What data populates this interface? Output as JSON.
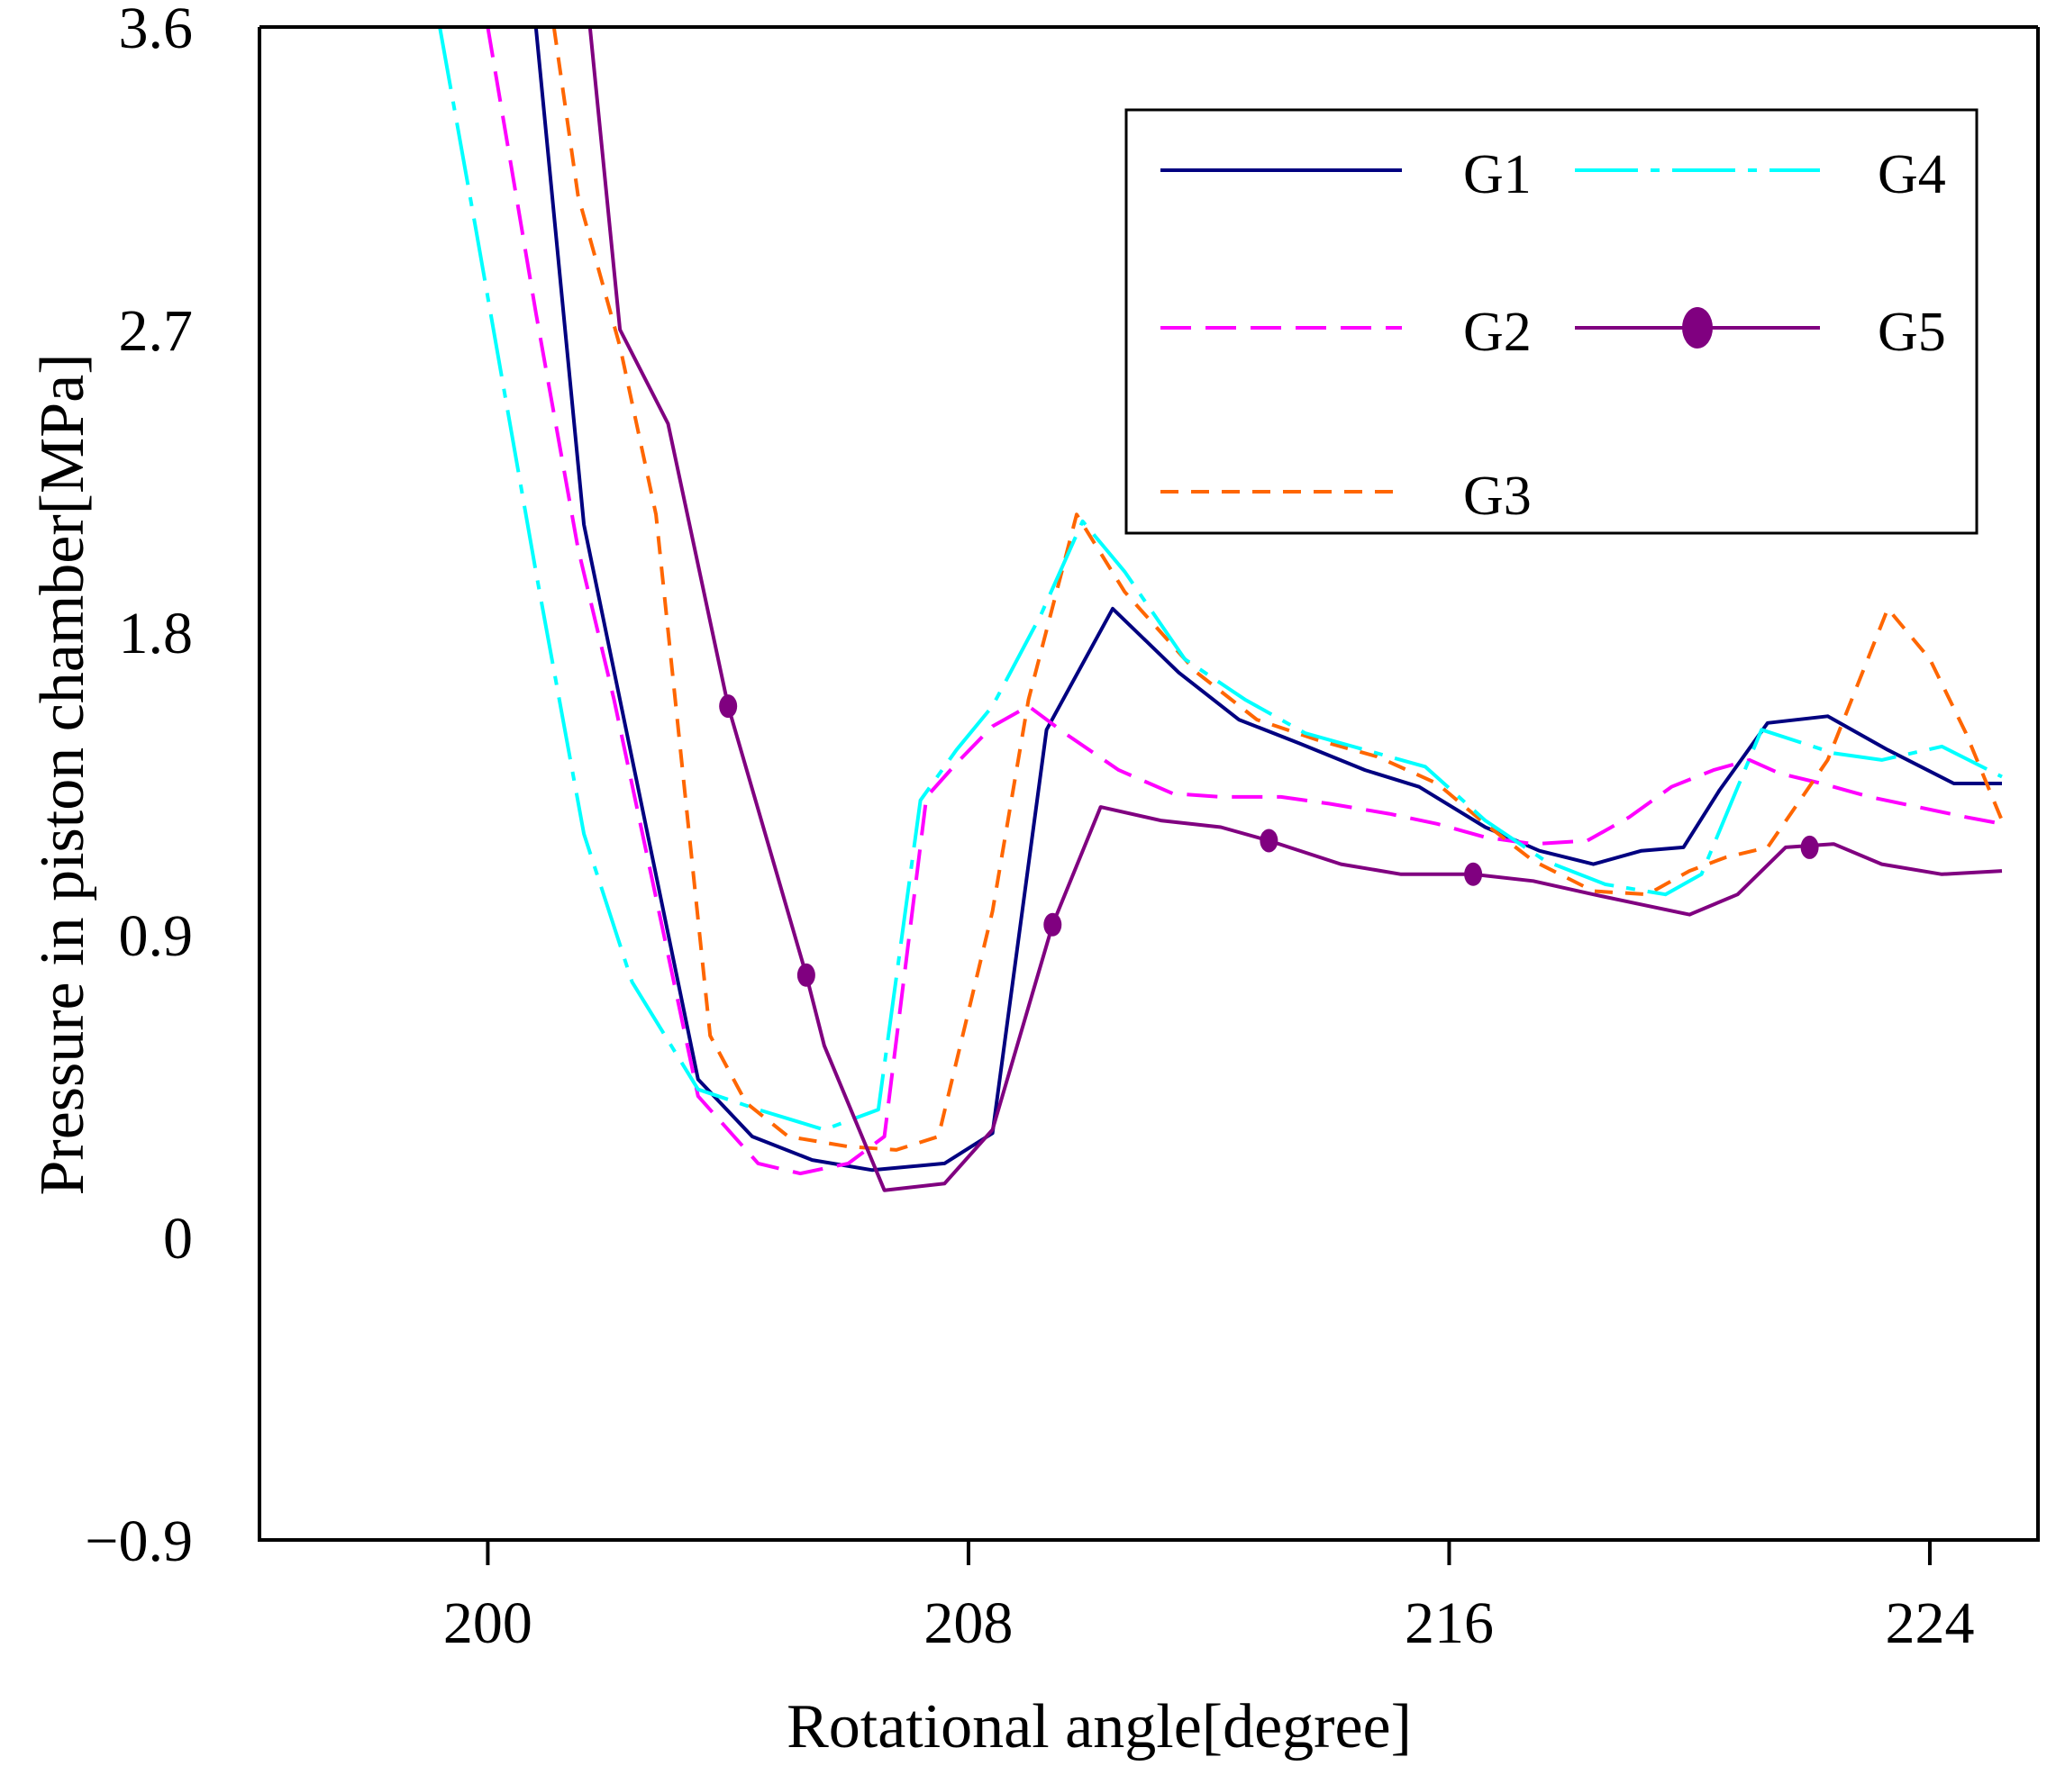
{
  "chart_data": {
    "type": "line",
    "title": "",
    "xlabel": "Rotational angle[degree]",
    "ylabel": "Pressure in piston chamber[MPa]",
    "xlim": [
      196.2,
      225.8
    ],
    "ylim": [
      -0.9,
      3.6
    ],
    "xticks": [
      200,
      208,
      216,
      224
    ],
    "xtick_labels": [
      "200",
      "208",
      "216",
      "224"
    ],
    "yticks": [
      -0.9,
      0,
      0.9,
      1.8,
      2.7,
      3.6
    ],
    "ytick_labels": [
      "−0.9",
      "0",
      "0.9",
      "1.8",
      "2.7",
      "3.6"
    ],
    "grid": false,
    "legend_position": "top-right",
    "series": [
      {
        "name": "G1",
        "color": "#000080",
        "dash": "",
        "x": [
          200.8,
          201.6,
          203.5,
          204.4,
          205.4,
          206.4,
          207.6,
          208.4,
          209.3,
          210.4,
          211.5,
          212.5,
          213.5,
          214.6,
          215.5,
          216.6,
          217.5,
          218.4,
          219.2,
          219.9,
          220.5,
          221.3,
          222.3,
          223.3,
          224.4,
          225.2
        ],
        "y": [
          3.6,
          2.12,
          0.47,
          0.3,
          0.23,
          0.2,
          0.22,
          0.31,
          1.51,
          1.87,
          1.68,
          1.54,
          1.47,
          1.39,
          1.34,
          1.22,
          1.15,
          1.11,
          1.15,
          1.16,
          1.33,
          1.53,
          1.55,
          1.45,
          1.35,
          1.35
        ]
      },
      {
        "name": "G2",
        "color": "#ff00ff",
        "dash": "34,16",
        "x": [
          200.0,
          200.8,
          201.5,
          202.1,
          203.5,
          204.5,
          205.2,
          206.0,
          206.6,
          207.3,
          207.8,
          208.4,
          209.0,
          209.6,
          210.5,
          211.4,
          212.2,
          213.2,
          214.0,
          215.0,
          215.8,
          216.6,
          217.4,
          218.3,
          219.0,
          219.7,
          220.4,
          221.0,
          221.5,
          222.2,
          223.0,
          223.8,
          224.6,
          225.2
        ],
        "y": [
          3.6,
          2.75,
          2.05,
          1.6,
          0.42,
          0.22,
          0.19,
          0.22,
          0.3,
          1.31,
          1.41,
          1.52,
          1.58,
          1.5,
          1.39,
          1.32,
          1.31,
          1.31,
          1.29,
          1.26,
          1.23,
          1.19,
          1.17,
          1.18,
          1.25,
          1.34,
          1.39,
          1.42,
          1.38,
          1.35,
          1.31,
          1.28,
          1.25,
          1.23
        ]
      },
      {
        "name": "G3",
        "color": "#ff6600",
        "dash": "20,14",
        "x": [
          201.1,
          201.5,
          202.2,
          202.8,
          203.7,
          204.3,
          205.0,
          206.0,
          206.8,
          207.5,
          208.4,
          209.0,
          209.8,
          210.6,
          211.8,
          212.8,
          213.8,
          214.8,
          215.8,
          216.6,
          217.4,
          218.4,
          219.3,
          220.0,
          220.6,
          221.3,
          222.3,
          223.3,
          224.0,
          224.6,
          225.2
        ],
        "y": [
          3.6,
          3.1,
          2.65,
          2.15,
          0.6,
          0.4,
          0.3,
          0.27,
          0.26,
          0.3,
          0.97,
          1.6,
          2.15,
          1.92,
          1.68,
          1.54,
          1.48,
          1.43,
          1.35,
          1.23,
          1.12,
          1.03,
          1.02,
          1.09,
          1.13,
          1.16,
          1.42,
          1.87,
          1.72,
          1.5,
          1.24
        ]
      },
      {
        "name": "G4",
        "color": "#00ffff",
        "dash": "70,14,10,14",
        "x": [
          199.2,
          199.8,
          200.8,
          201.6,
          202.4,
          203.5,
          204.5,
          205.6,
          206.5,
          207.2,
          207.8,
          208.4,
          209.2,
          209.9,
          210.6,
          211.6,
          212.6,
          213.6,
          214.6,
          215.6,
          216.6,
          217.6,
          218.6,
          219.6,
          220.2,
          221.2,
          222.4,
          223.2,
          224.2,
          225.2
        ],
        "y": [
          3.6,
          3.0,
          1.98,
          1.2,
          0.76,
          0.44,
          0.38,
          0.32,
          0.38,
          1.3,
          1.45,
          1.58,
          1.85,
          2.13,
          1.98,
          1.72,
          1.6,
          1.5,
          1.45,
          1.4,
          1.24,
          1.12,
          1.05,
          1.02,
          1.08,
          1.51,
          1.44,
          1.42,
          1.46,
          1.37
        ]
      },
      {
        "name": "G5",
        "color": "#800080",
        "dash": "",
        "x": [
          201.7,
          202.2,
          203.0,
          204.0,
          205.3,
          205.6,
          206.6,
          207.6,
          208.4,
          209.4,
          210.2,
          211.2,
          212.2,
          213.0,
          214.2,
          215.2,
          216.4,
          217.4,
          218.4,
          219.2,
          220.0,
          220.8,
          221.6,
          222.4,
          223.2,
          224.2,
          225.2
        ],
        "y": [
          3.6,
          2.7,
          2.42,
          1.58,
          0.78,
          0.57,
          0.14,
          0.16,
          0.32,
          0.93,
          1.28,
          1.24,
          1.22,
          1.18,
          1.11,
          1.08,
          1.08,
          1.06,
          1.02,
          0.99,
          0.96,
          1.02,
          1.16,
          1.17,
          1.11,
          1.08,
          1.09
        ]
      }
    ],
    "markers": {
      "series": "G5",
      "x": [
        204.0,
        205.3,
        209.4,
        213.0,
        216.4,
        222.0
      ],
      "y": [
        1.58,
        0.78,
        0.93,
        1.18,
        1.08,
        1.16
      ]
    }
  }
}
